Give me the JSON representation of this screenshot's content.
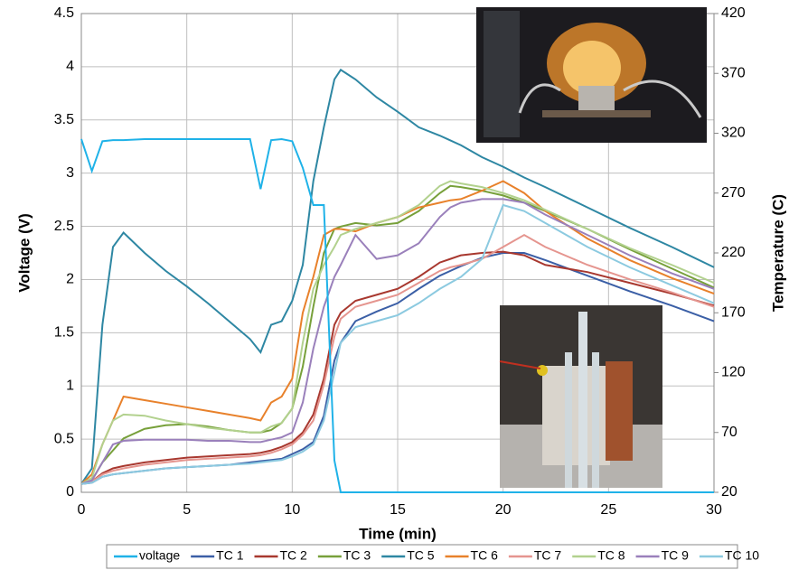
{
  "chart_data": {
    "type": "line",
    "x_label": "Time (min)",
    "y_label": "Voltage (V)",
    "y2_label": "Temperature (C)",
    "x": [
      0,
      0.5,
      1,
      1.5,
      2,
      3,
      4,
      5,
      6,
      7,
      8,
      8.5,
      9,
      9.5,
      10,
      10.5,
      11,
      11.5,
      12,
      12.3,
      13,
      14,
      15,
      16,
      17,
      17.5,
      18,
      19,
      20,
      21,
      22,
      24,
      26,
      28,
      30
    ],
    "xlim": [
      0,
      30
    ],
    "xticks": [
      0,
      5,
      10,
      15,
      20,
      25,
      30
    ],
    "ylim": [
      0,
      4.5
    ],
    "yticks": [
      0,
      0.5,
      1,
      1.5,
      2,
      2.5,
      3,
      3.5,
      4,
      4.5
    ],
    "y2lim": [
      20,
      420
    ],
    "y2ticks": [
      20,
      70,
      120,
      170,
      220,
      270,
      320,
      370,
      420
    ],
    "grid": true,
    "legend": "bottom",
    "series": [
      {
        "name": "voltage",
        "color": "#1fb2e8",
        "values": [
          3.32,
          3.02,
          3.3,
          3.31,
          3.31,
          3.32,
          3.32,
          3.32,
          3.32,
          3.32,
          3.32,
          2.85,
          3.31,
          3.32,
          3.3,
          3.05,
          2.7,
          2.7,
          0.3,
          0,
          0,
          0,
          0,
          0,
          0,
          0,
          0,
          0,
          0,
          0,
          0,
          0,
          0,
          0,
          0
        ]
      },
      {
        "name": "TC 1",
        "color": "#3b5fa6",
        "axis": "y2",
        "values": [
          27,
          28,
          33,
          35,
          36,
          38,
          40,
          41,
          42,
          43,
          45,
          46,
          47,
          48,
          52,
          56,
          62,
          84,
          130,
          145,
          163,
          171,
          178,
          190,
          201,
          205,
          209,
          216,
          220,
          220,
          214,
          201,
          188,
          176,
          163
        ]
      },
      {
        "name": "TC 2",
        "color": "#a8382f",
        "axis": "y2",
        "values": [
          27,
          29,
          36,
          40,
          42,
          45,
          47,
          49,
          50,
          51,
          52,
          53,
          55,
          58,
          62,
          70,
          85,
          115,
          160,
          170,
          180,
          185,
          190,
          200,
          212,
          215,
          218,
          220,
          221,
          218,
          210,
          204,
          195,
          186,
          176
        ]
      },
      {
        "name": "TC 3",
        "color": "#77a03a",
        "axis": "y2",
        "values": [
          27,
          30,
          45,
          55,
          65,
          73,
          76,
          77,
          75,
          72,
          70,
          70,
          72,
          78,
          90,
          125,
          175,
          220,
          240,
          242,
          245,
          243,
          245,
          255,
          270,
          276,
          275,
          272,
          268,
          262,
          255,
          240,
          223,
          207,
          191
        ]
      },
      {
        "name": "TC 5",
        "color": "#2e87a3",
        "axis": "y2",
        "values": [
          27,
          40,
          160,
          225,
          237,
          220,
          205,
          192,
          178,
          163,
          148,
          137,
          160,
          163,
          180,
          210,
          280,
          325,
          365,
          373,
          365,
          350,
          338,
          325,
          318,
          314,
          310,
          300,
          292,
          283,
          275,
          258,
          241,
          225,
          208
        ]
      },
      {
        "name": "TC 6",
        "color": "#e8812b",
        "axis": "y2",
        "values": [
          27,
          35,
          60,
          80,
          100,
          97,
          94,
          91,
          88,
          85,
          82,
          80,
          95,
          100,
          115,
          170,
          200,
          235,
          240,
          240,
          238,
          245,
          250,
          258,
          262,
          264,
          265,
          272,
          280,
          270,
          255,
          232,
          214,
          199,
          186
        ]
      },
      {
        "name": "TC 7",
        "color": "#e5958f",
        "axis": "y2",
        "values": [
          27,
          29,
          35,
          38,
          40,
          43,
          45,
          47,
          48,
          49,
          50,
          51,
          53,
          56,
          60,
          68,
          80,
          110,
          150,
          165,
          175,
          180,
          185,
          195,
          205,
          208,
          210,
          215,
          225,
          235,
          225,
          210,
          198,
          187,
          175
        ]
      },
      {
        "name": "TC 8",
        "color": "#b2d18e",
        "axis": "y2",
        "values": [
          27,
          32,
          60,
          80,
          85,
          84,
          80,
          77,
          74,
          72,
          70,
          70,
          75,
          78,
          90,
          145,
          190,
          210,
          225,
          235,
          240,
          245,
          250,
          260,
          276,
          280,
          278,
          275,
          270,
          264,
          256,
          240,
          224,
          210,
          195
        ]
      },
      {
        "name": "TC 9",
        "color": "#9a80bb",
        "axis": "y2",
        "values": [
          27,
          30,
          45,
          60,
          63,
          64,
          64,
          64,
          63,
          63,
          62,
          62,
          64,
          66,
          70,
          95,
          140,
          175,
          200,
          210,
          235,
          215,
          218,
          228,
          250,
          258,
          262,
          265,
          265,
          262,
          252,
          235,
          218,
          203,
          190
        ]
      },
      {
        "name": "TC 10",
        "color": "#8ccae0",
        "axis": "y2",
        "values": [
          27,
          28,
          33,
          35,
          36,
          38,
          40,
          41,
          42,
          43,
          44,
          45,
          46,
          47,
          50,
          54,
          60,
          80,
          120,
          145,
          158,
          163,
          168,
          178,
          190,
          195,
          200,
          215,
          260,
          255,
          245,
          225,
          208,
          193,
          178
        ]
      }
    ]
  }
}
